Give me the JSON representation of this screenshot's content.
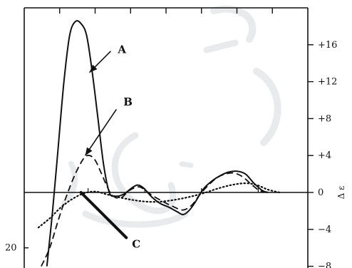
{
  "chart_data": {
    "type": "line",
    "ylabel": "Δ ε",
    "ylim": [
      -8,
      20
    ],
    "xlim": [
      0,
      10
    ],
    "right_ticks": [
      {
        "value": 16,
        "label": "+16"
      },
      {
        "value": 12,
        "label": "+12"
      },
      {
        "value": 8,
        "label": "+8"
      },
      {
        "value": 4,
        "label": "+4"
      },
      {
        "value": 0,
        "label": "0"
      },
      {
        "value": -4,
        "label": "−4"
      },
      {
        "value": -8,
        "label": "−8"
      }
    ],
    "left_ticks": [
      {
        "value": -6,
        "label": "20"
      }
    ],
    "series": [
      {
        "key": "A",
        "style": "solid",
        "points": [
          [
            0.8,
            -8
          ],
          [
            1.0,
            -2
          ],
          [
            1.2,
            5
          ],
          [
            1.4,
            12
          ],
          [
            1.6,
            17
          ],
          [
            1.8,
            18.5
          ],
          [
            2.0,
            18.3
          ],
          [
            2.2,
            17
          ],
          [
            2.4,
            13
          ],
          [
            2.6,
            8
          ],
          [
            2.8,
            3
          ],
          [
            3.0,
            0
          ],
          [
            3.2,
            -0.4
          ],
          [
            3.5,
            -0.2
          ],
          [
            3.8,
            0.5
          ],
          [
            4.0,
            0.8
          ],
          [
            4.2,
            0.5
          ],
          [
            4.5,
            -0.5
          ],
          [
            4.8,
            -1.2
          ],
          [
            5.1,
            -1.6
          ],
          [
            5.4,
            -2.1
          ],
          [
            5.6,
            -2.4
          ],
          [
            5.8,
            -2.0
          ],
          [
            6.0,
            -1.2
          ],
          [
            6.3,
            0.3
          ],
          [
            6.6,
            1.2
          ],
          [
            6.9,
            1.8
          ],
          [
            7.2,
            2.2
          ],
          [
            7.5,
            2.3
          ],
          [
            7.8,
            2.0
          ],
          [
            8.1,
            1.0
          ],
          [
            8.4,
            0.2
          ],
          [
            8.6,
            0
          ]
        ]
      },
      {
        "key": "B",
        "style": "dashed",
        "points": [
          [
            0.6,
            -8
          ],
          [
            0.9,
            -6
          ],
          [
            1.2,
            -3
          ],
          [
            1.5,
            -0.3
          ],
          [
            1.8,
            2
          ],
          [
            2.1,
            3.7
          ],
          [
            2.3,
            4.0
          ],
          [
            2.5,
            3.5
          ],
          [
            2.7,
            2.2
          ],
          [
            2.9,
            0.8
          ],
          [
            3.1,
            -0.3
          ],
          [
            3.4,
            -0.6
          ],
          [
            3.7,
            0.2
          ],
          [
            4.0,
            0.6
          ],
          [
            4.2,
            0.4
          ],
          [
            4.5,
            -0.3
          ],
          [
            4.9,
            -1.0
          ],
          [
            5.3,
            -1.6
          ],
          [
            5.6,
            -1.9
          ],
          [
            5.9,
            -1.4
          ],
          [
            6.2,
            -0.2
          ],
          [
            6.5,
            0.8
          ],
          [
            6.8,
            1.6
          ],
          [
            7.1,
            2.0
          ],
          [
            7.4,
            2.1
          ],
          [
            7.7,
            1.7
          ],
          [
            8.0,
            0.9
          ],
          [
            8.3,
            0.2
          ],
          [
            8.6,
            0
          ]
        ]
      },
      {
        "key": "C",
        "style": "dotted",
        "points": [
          [
            0.5,
            -3.8
          ],
          [
            0.9,
            -2.8
          ],
          [
            1.3,
            -1.6
          ],
          [
            1.7,
            -0.7
          ],
          [
            2.1,
            -0.1
          ],
          [
            2.5,
            0.1
          ],
          [
            2.9,
            -0.2
          ],
          [
            3.3,
            -0.5
          ],
          [
            3.8,
            -0.8
          ],
          [
            4.3,
            -1.0
          ],
          [
            4.8,
            -1.0
          ],
          [
            5.3,
            -0.8
          ],
          [
            5.8,
            -0.5
          ],
          [
            6.3,
            -0.1
          ],
          [
            6.8,
            0.4
          ],
          [
            7.3,
            0.8
          ],
          [
            7.8,
            1.0
          ],
          [
            8.2,
            0.8
          ],
          [
            8.6,
            0.3
          ],
          [
            9.0,
            0
          ]
        ]
      }
    ],
    "annotations": [
      {
        "label": "A",
        "text_at": [
          3.3,
          15.5
        ],
        "arrow_from": [
          3.05,
          15.3
        ],
        "arrow_to": [
          2.3,
          13.0
        ],
        "kind": "arrow"
      },
      {
        "label": "B",
        "text_at": [
          3.5,
          9.8
        ],
        "arrow_from": [
          3.25,
          9.0
        ],
        "arrow_to": [
          2.15,
          4.0
        ],
        "kind": "arrow"
      },
      {
        "label": "C",
        "text_at": [
          3.8,
          -5.6
        ],
        "line_from": [
          2.0,
          0.0
        ],
        "line_to": [
          3.6,
          -4.9
        ],
        "kind": "bold-line"
      }
    ]
  },
  "colors": {
    "ink": "#111111",
    "watermark": "#9aa0a8"
  }
}
